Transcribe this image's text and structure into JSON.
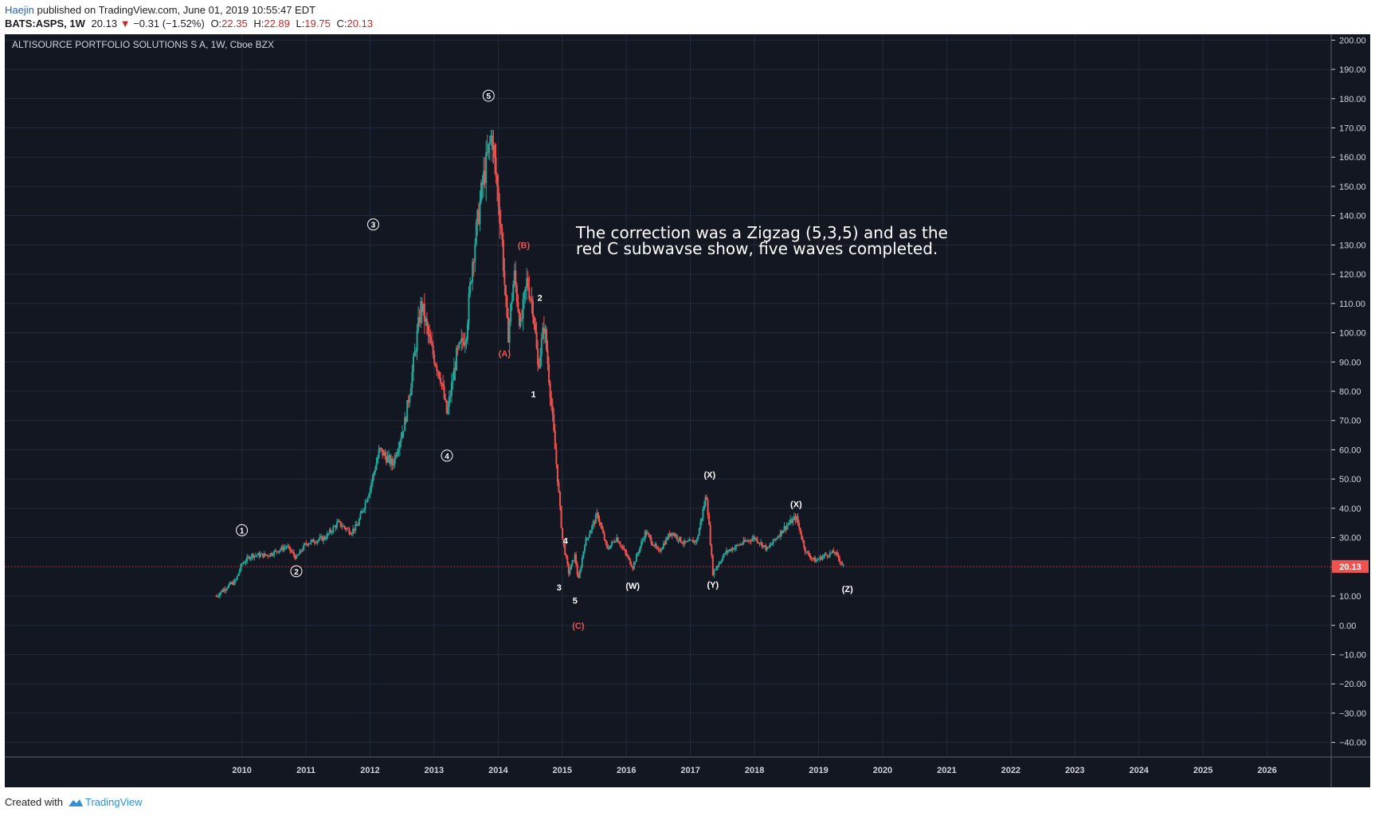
{
  "header": {
    "author": "Haejin",
    "published": "published on TradingView.com, June 01, 2019 10:55:47 EDT",
    "symbol": "BATS:ASPS, 1W",
    "last": "20.13",
    "change": "−0.31 (−1.52%)",
    "o_label": "O:",
    "o_value": "22.35",
    "h_label": "H:",
    "h_value": "22.89",
    "l_label": "L:",
    "l_value": "19.75",
    "c_label": "C:",
    "c_value": "20.13"
  },
  "footer": {
    "created_with": "Created with",
    "brand": "TradingView"
  },
  "colors": {
    "background": "#131722",
    "grid": "#232a3a",
    "up": "#26a69a",
    "down": "#ef5350",
    "label_red": "#ef5350",
    "label_white": "#ffffff",
    "price_tag": "#ef5350"
  },
  "chart_data": {
    "type": "candlestick",
    "title": "ALTISOURCE PORTFOLIO SOLUTIONS S A, 1W, Cboe BZX",
    "annotation": [
      "The correction was a Zigzag (5,3,5) and as the",
      "red C subwavse show, five waves completed."
    ],
    "y_axis": {
      "ylim": [
        -45,
        202
      ],
      "ticks": [
        "200.00",
        "190.00",
        "180.00",
        "170.00",
        "160.00",
        "150.00",
        "140.00",
        "130.00",
        "120.00",
        "110.00",
        "100.00",
        "90.00",
        "80.00",
        "70.00",
        "60.00",
        "50.00",
        "40.00",
        "30.00",
        "20.00",
        "10.00",
        "0.00",
        "−10.00",
        "−20.00",
        "−30.00",
        "−40.00"
      ],
      "tick_values": [
        200,
        190,
        180,
        170,
        160,
        150,
        140,
        130,
        120,
        110,
        100,
        90,
        80,
        70,
        60,
        50,
        40,
        30,
        20,
        10,
        0,
        -10,
        -20,
        -30,
        -40
      ]
    },
    "x_axis": {
      "xlim": [
        2006.3,
        2027.0
      ],
      "ticks": [
        "2010",
        "2011",
        "2012",
        "2013",
        "2014",
        "2015",
        "2016",
        "2017",
        "2018",
        "2019",
        "2020",
        "2021",
        "2022",
        "2023",
        "2024",
        "2025",
        "2026"
      ],
      "tick_values": [
        2010,
        2011,
        2012,
        2013,
        2014,
        2015,
        2016,
        2017,
        2018,
        2019,
        2020,
        2021,
        2022,
        2023,
        2024,
        2025,
        2026
      ]
    },
    "last_price": {
      "value": 20.13,
      "label": "20.13"
    },
    "price_path": [
      [
        2009.6,
        10
      ],
      [
        2009.75,
        13
      ],
      [
        2009.9,
        15
      ],
      [
        2010.0,
        21
      ],
      [
        2010.15,
        24
      ],
      [
        2010.4,
        24
      ],
      [
        2010.7,
        27
      ],
      [
        2010.85,
        23
      ],
      [
        2011.0,
        28
      ],
      [
        2011.3,
        30
      ],
      [
        2011.5,
        35
      ],
      [
        2011.7,
        32
      ],
      [
        2011.8,
        34
      ],
      [
        2012.0,
        47
      ],
      [
        2012.15,
        60
      ],
      [
        2012.35,
        55
      ],
      [
        2012.55,
        70
      ],
      [
        2012.65,
        85
      ],
      [
        2012.8,
        110
      ],
      [
        2012.95,
        95
      ],
      [
        2013.1,
        85
      ],
      [
        2013.2,
        72
      ],
      [
        2013.35,
        92
      ],
      [
        2013.5,
        100
      ],
      [
        2013.6,
        125
      ],
      [
        2013.75,
        150
      ],
      [
        2013.9,
        168
      ],
      [
        2014.05,
        135
      ],
      [
        2014.15,
        98
      ],
      [
        2014.25,
        120
      ],
      [
        2014.35,
        102
      ],
      [
        2014.45,
        118
      ],
      [
        2014.55,
        108
      ],
      [
        2014.62,
        88
      ],
      [
        2014.72,
        103
      ],
      [
        2014.82,
        78
      ],
      [
        2014.92,
        52
      ],
      [
        2015.0,
        30
      ],
      [
        2015.1,
        18
      ],
      [
        2015.2,
        24
      ],
      [
        2015.25,
        15
      ],
      [
        2015.35,
        28
      ],
      [
        2015.55,
        38
      ],
      [
        2015.7,
        26
      ],
      [
        2015.85,
        30
      ],
      [
        2016.1,
        20
      ],
      [
        2016.3,
        32
      ],
      [
        2016.5,
        25
      ],
      [
        2016.7,
        32
      ],
      [
        2016.9,
        28
      ],
      [
        2017.1,
        29
      ],
      [
        2017.25,
        45
      ],
      [
        2017.35,
        18
      ],
      [
        2017.55,
        25
      ],
      [
        2017.8,
        28
      ],
      [
        2018.0,
        30
      ],
      [
        2018.2,
        26
      ],
      [
        2018.45,
        33
      ],
      [
        2018.65,
        37
      ],
      [
        2018.8,
        25
      ],
      [
        2018.95,
        22
      ],
      [
        2019.1,
        24
      ],
      [
        2019.25,
        25
      ],
      [
        2019.4,
        20
      ]
    ],
    "wave_labels": [
      {
        "text": "1",
        "x": 2010.0,
        "y": 32.5,
        "style": "circle",
        "color": "white"
      },
      {
        "text": "2",
        "x": 2010.85,
        "y": 18.5,
        "style": "circle",
        "color": "white"
      },
      {
        "text": "3",
        "x": 2012.05,
        "y": 137,
        "style": "circle",
        "color": "white"
      },
      {
        "text": "4",
        "x": 2013.2,
        "y": 58,
        "style": "circle",
        "color": "white"
      },
      {
        "text": "5",
        "x": 2013.85,
        "y": 181,
        "style": "circle",
        "color": "white"
      },
      {
        "text": "(A)",
        "x": 2014.1,
        "y": 93,
        "style": "text",
        "color": "red"
      },
      {
        "text": "(B)",
        "x": 2014.4,
        "y": 130,
        "style": "text",
        "color": "red"
      },
      {
        "text": "(C)",
        "x": 2015.25,
        "y": 0,
        "style": "text",
        "color": "red"
      },
      {
        "text": "1",
        "x": 2014.55,
        "y": 79,
        "style": "text",
        "color": "white"
      },
      {
        "text": "2",
        "x": 2014.65,
        "y": 112,
        "style": "text",
        "color": "white"
      },
      {
        "text": "3",
        "x": 2014.95,
        "y": 13,
        "style": "text",
        "color": "white"
      },
      {
        "text": "4",
        "x": 2015.05,
        "y": 29,
        "style": "text",
        "color": "white"
      },
      {
        "text": "5",
        "x": 2015.2,
        "y": 8.5,
        "style": "text",
        "color": "white"
      },
      {
        "text": "(W)",
        "x": 2016.1,
        "y": 13.5,
        "style": "text",
        "color": "white"
      },
      {
        "text": "(X)",
        "x": 2017.3,
        "y": 51.5,
        "style": "text",
        "color": "white"
      },
      {
        "text": "(Y)",
        "x": 2017.35,
        "y": 14,
        "style": "text",
        "color": "white"
      },
      {
        "text": "(X)",
        "x": 2018.65,
        "y": 41.5,
        "style": "text",
        "color": "white"
      },
      {
        "text": "(Z)",
        "x": 2019.45,
        "y": 12.5,
        "style": "text",
        "color": "white"
      }
    ]
  }
}
